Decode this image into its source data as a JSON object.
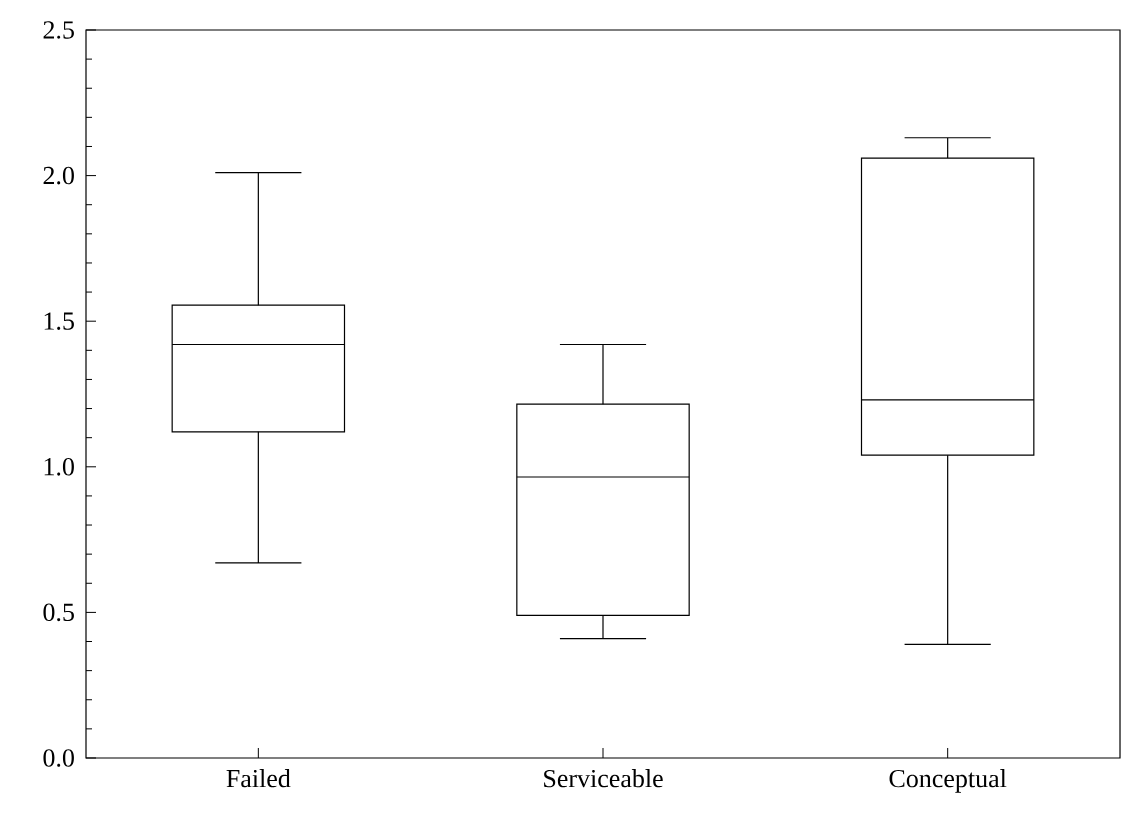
{
  "chart_data": {
    "type": "box",
    "categories": [
      "Failed",
      "Serviceable",
      "Conceptual"
    ],
    "boxes": [
      {
        "low": 0.67,
        "q1": 1.12,
        "median": 1.42,
        "q3": 1.555,
        "high": 2.01
      },
      {
        "low": 0.41,
        "q1": 0.49,
        "median": 0.965,
        "q3": 1.215,
        "high": 1.42
      },
      {
        "low": 0.39,
        "q1": 1.04,
        "median": 1.23,
        "q3": 2.06,
        "high": 2.13
      }
    ],
    "color": "#000000",
    "ylim": [
      0,
      2.5
    ],
    "yticks": [
      {
        "value": 0,
        "label": "0.0"
      },
      {
        "value": 0.5,
        "label": "0.5"
      },
      {
        "value": 1,
        "label": "1.0"
      },
      {
        "value": 1.5,
        "label": "1.5"
      },
      {
        "value": 2,
        "label": "2.0"
      },
      {
        "value": 2.5,
        "label": "2.5"
      }
    ]
  }
}
